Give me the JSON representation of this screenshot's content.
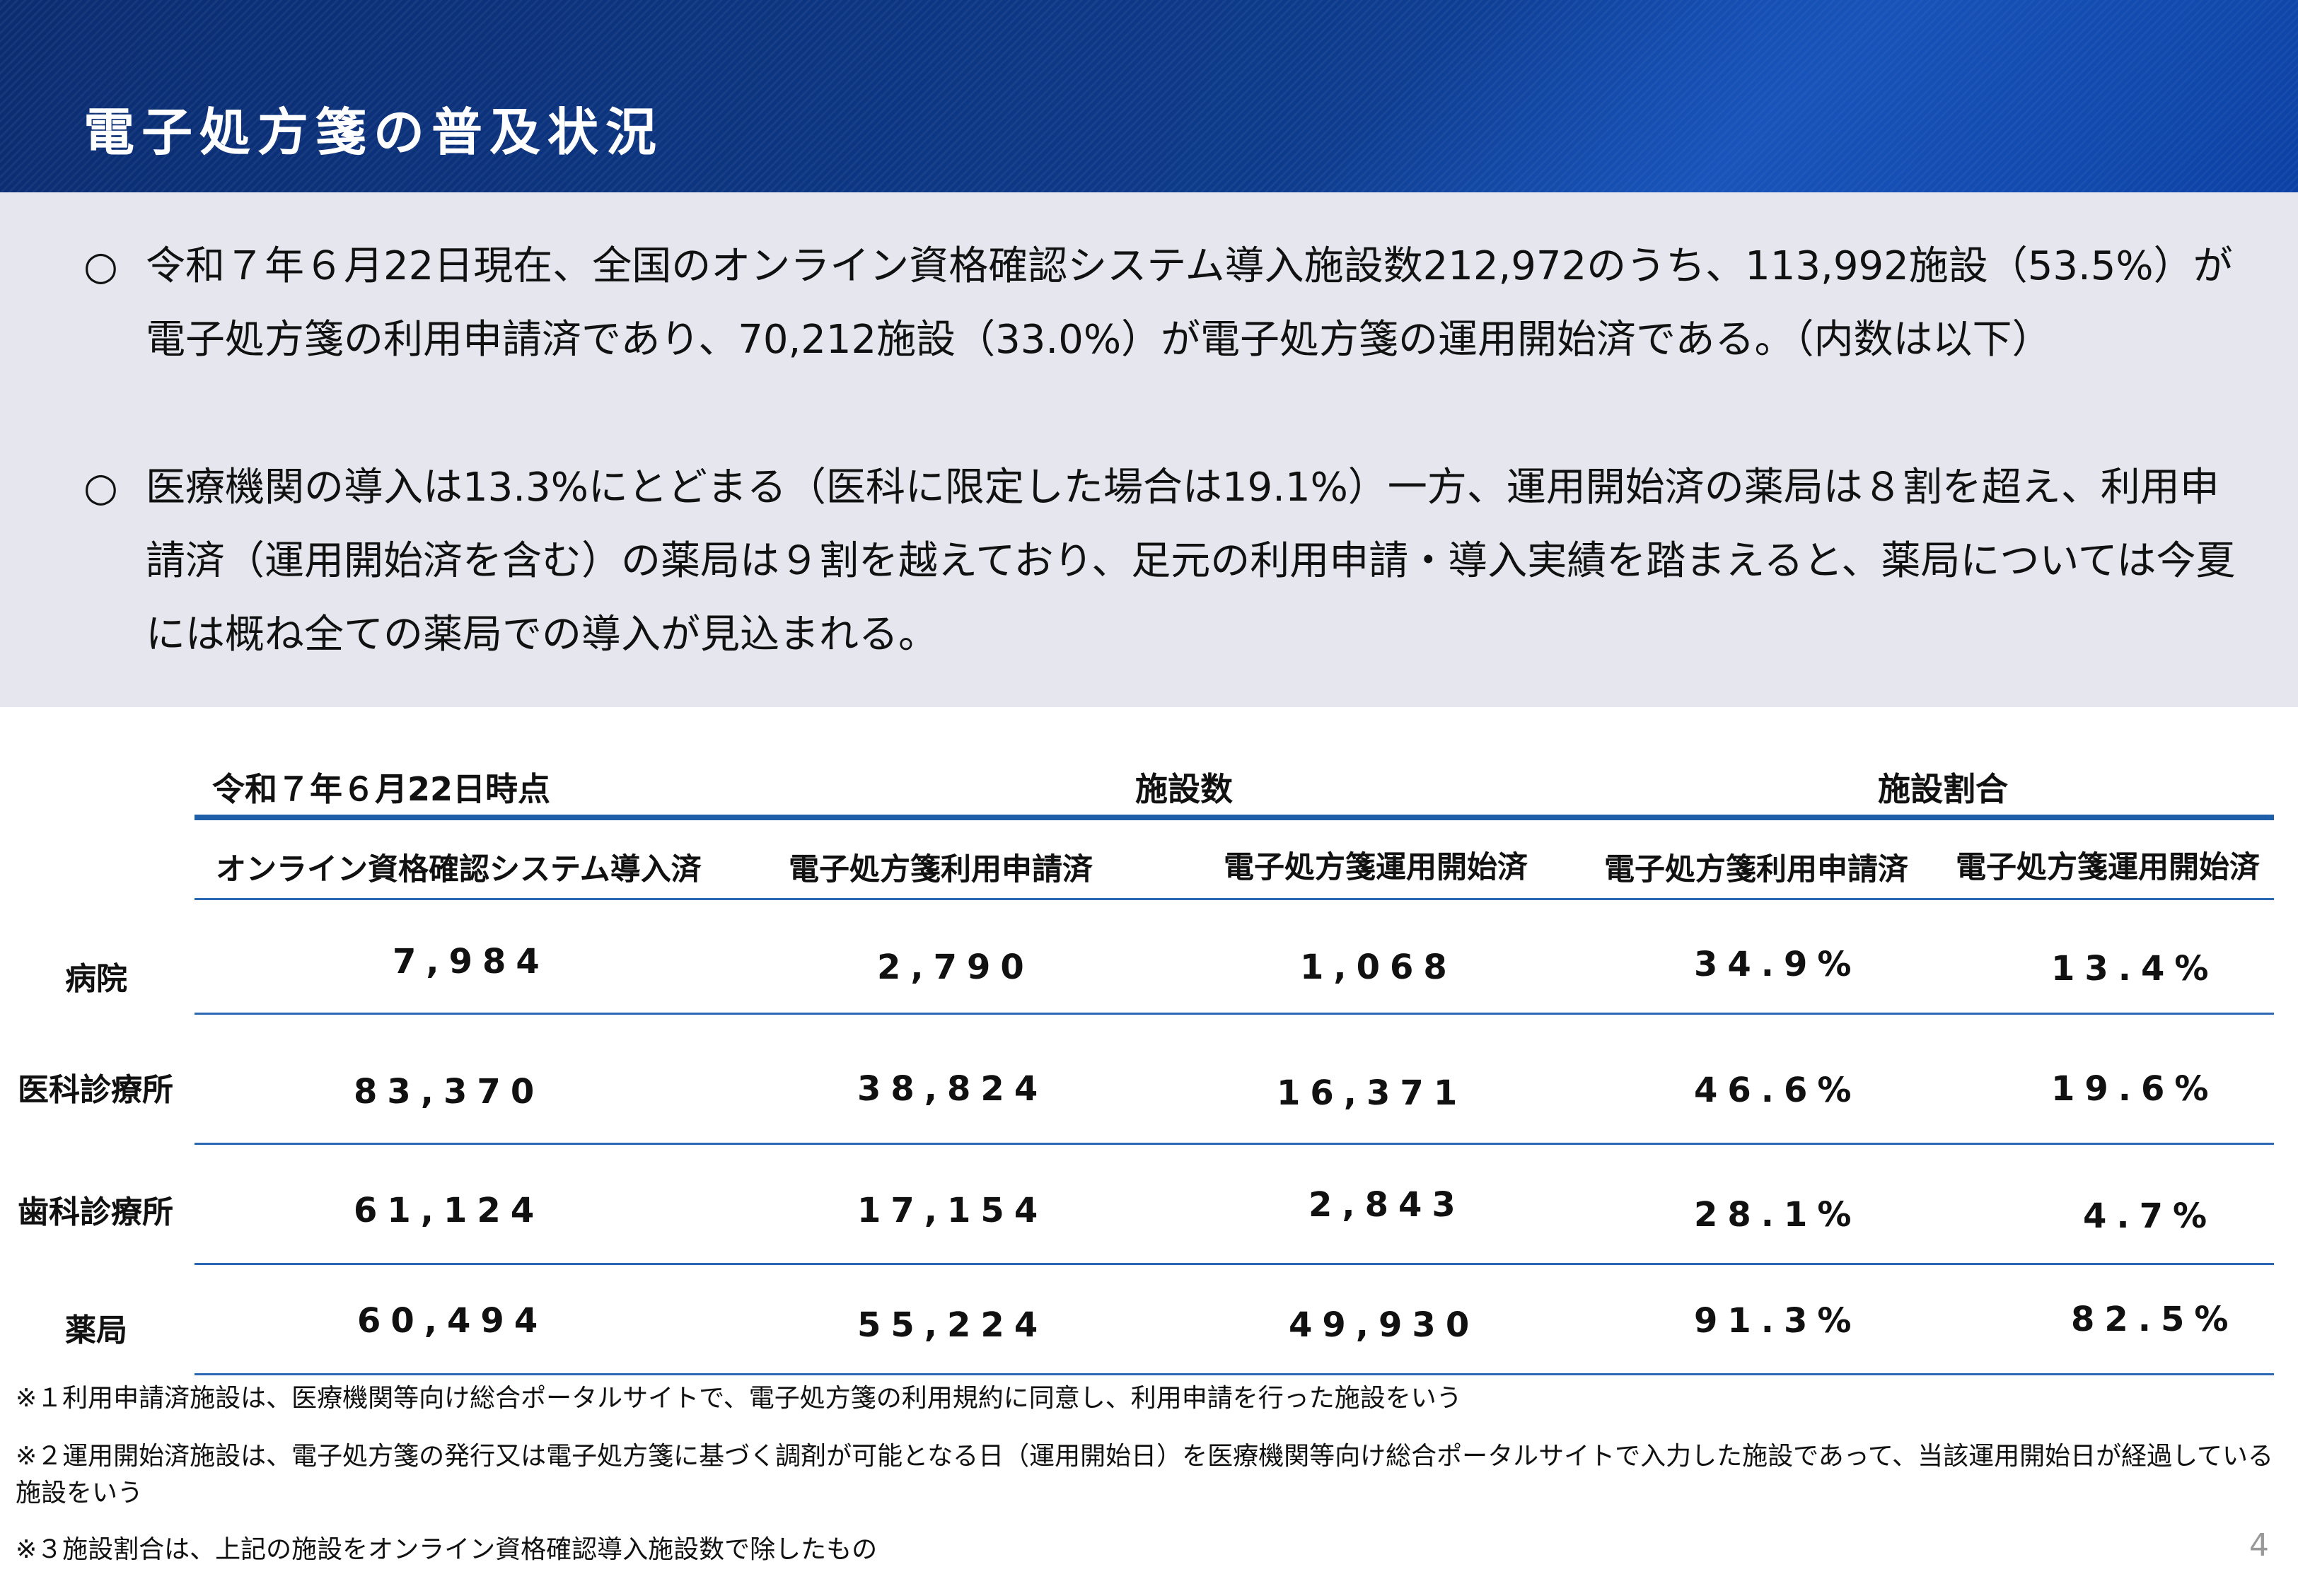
{
  "header": {
    "title": "電子処方箋の普及状況"
  },
  "summary": {
    "bullet_mark": "○",
    "p1": "令和７年６月22日現在、全国のオンライン資格確認システム導入施設数212,972のうち、113,992施設（53.5%）が電子処方箋の利用申請済であり、70,212施設（33.0%）が電子処方箋の運用開始済である。（内数は以下）",
    "p2": "医療機関の導入は13.3%にとどまる（医科に限定した場合は19.1%）一方、運用開始済の薬局は８割を超え、利用申請済（運用開始済を含む）の薬局は９割を越えており、足元の利用申請・導入実績を踏まえると、薬局については今夏には概ね全ての薬局での導入が見込まれる。"
  },
  "table": {
    "date_label": "令和７年６月22日時点",
    "group_count": "施設数",
    "group_ratio": "施設割合",
    "columns": [
      "オンライン資格確認システム導入済",
      "電子処方箋利用申請済",
      "電子処方箋運用開始済",
      "電子処方箋利用申請済",
      "電子処方箋運用開始済"
    ],
    "rows": [
      {
        "label": "病院",
        "values": [
          "7,984",
          "2,790",
          "1,068",
          "34.9%",
          "13.4%"
        ]
      },
      {
        "label": "医科診療所",
        "values": [
          "83,370",
          "38,824",
          "16,371",
          "46.6%",
          "19.6%"
        ]
      },
      {
        "label": "歯科診療所",
        "values": [
          "61,124",
          "17,154",
          "2,843",
          "28.1%",
          "4.7%"
        ]
      },
      {
        "label": "薬局",
        "values": [
          "60,494",
          "55,224",
          "49,930",
          "91.3%",
          "82.5%"
        ]
      }
    ]
  },
  "notes": {
    "n1": "※１利用申請済施設は、医療機関等向け総合ポータルサイトで、電子処方箋の利用規約に同意し、利用申請を行った施設をいう",
    "n2": "※２運用開始済施設は、電子処方箋の発行又は電子処方箋に基づく調剤が可能となる日（運用開始日）を医療機関等向け総合ポータルサイトで入力した施設であって、当該運用開始日が経過している施設をいう",
    "n3": "※３施設割合は、上記の施設をオンライン資格確認導入施設数で除したもの"
  },
  "page_number": "4"
}
